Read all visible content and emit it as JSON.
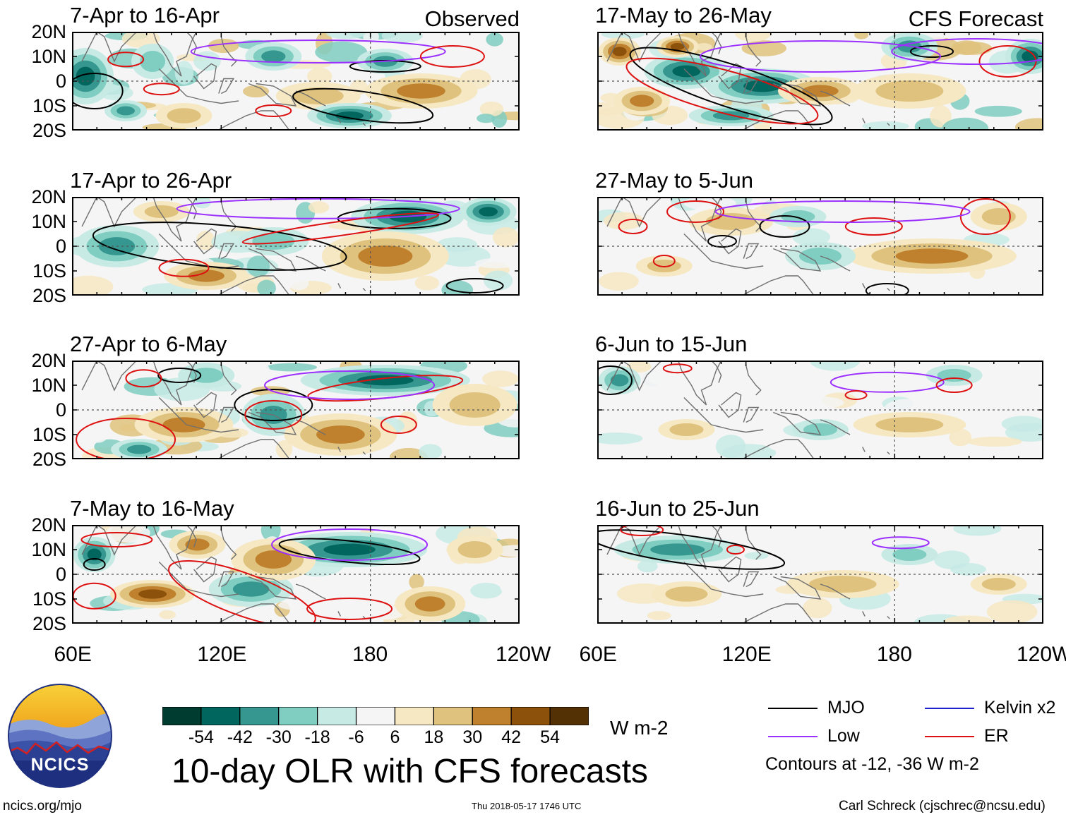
{
  "chart_data": {
    "type": "heatmap",
    "title": "10-day OLR with CFS forecasts",
    "variable": "OLR anomaly",
    "units": "W m-2",
    "colorbar": {
      "ticks": [
        "-54",
        "-42",
        "-30",
        "-18",
        "-6",
        "6",
        "18",
        "30",
        "42",
        "54"
      ],
      "colors": [
        "#003c30",
        "#01665e",
        "#35978f",
        "#80cdc1",
        "#c7eae5",
        "#f5f5f5",
        "#f6e8c3",
        "#dfc27d",
        "#bf812d",
        "#8c510a",
        "#543005"
      ]
    },
    "lat_labels": [
      "20N",
      "10N",
      "0",
      "10S",
      "20S"
    ],
    "lon_labels": [
      "60E",
      "120E",
      "180",
      "120W"
    ],
    "lat_range": [
      -20,
      20
    ],
    "lon_range": [
      60,
      240
    ],
    "columns": [
      {
        "label": "Observed",
        "panels": [
          {
            "title": "7-Apr to 16-Apr"
          },
          {
            "title": "17-Apr to 26-Apr"
          },
          {
            "title": "27-Apr to 6-May"
          },
          {
            "title": "7-May to 16-May"
          }
        ]
      },
      {
        "label": "CFS Forecast",
        "panels": [
          {
            "title": "17-May to 26-May"
          },
          {
            "title": "27-May to 5-Jun"
          },
          {
            "title": "6-Jun to 15-Jun"
          },
          {
            "title": "16-Jun to 25-Jun"
          }
        ]
      }
    ],
    "contour_legend": {
      "items": [
        {
          "label": "MJO",
          "color": "#000000"
        },
        {
          "label": "Low",
          "color": "#9b30ff"
        },
        {
          "label": "Kelvin x2",
          "color": "#2020cc"
        },
        {
          "label": "ER",
          "color": "#dd1111"
        }
      ],
      "note": "Contours at -12, -36 W m-2"
    }
  },
  "logo": {
    "text": "NCICS"
  },
  "footer": {
    "url": "ncics.org/mjo",
    "timestamp": "Thu 2018-05-17 1746 UTC",
    "author": "Carl Schreck (cjschrec@ncsu.edu)"
  }
}
